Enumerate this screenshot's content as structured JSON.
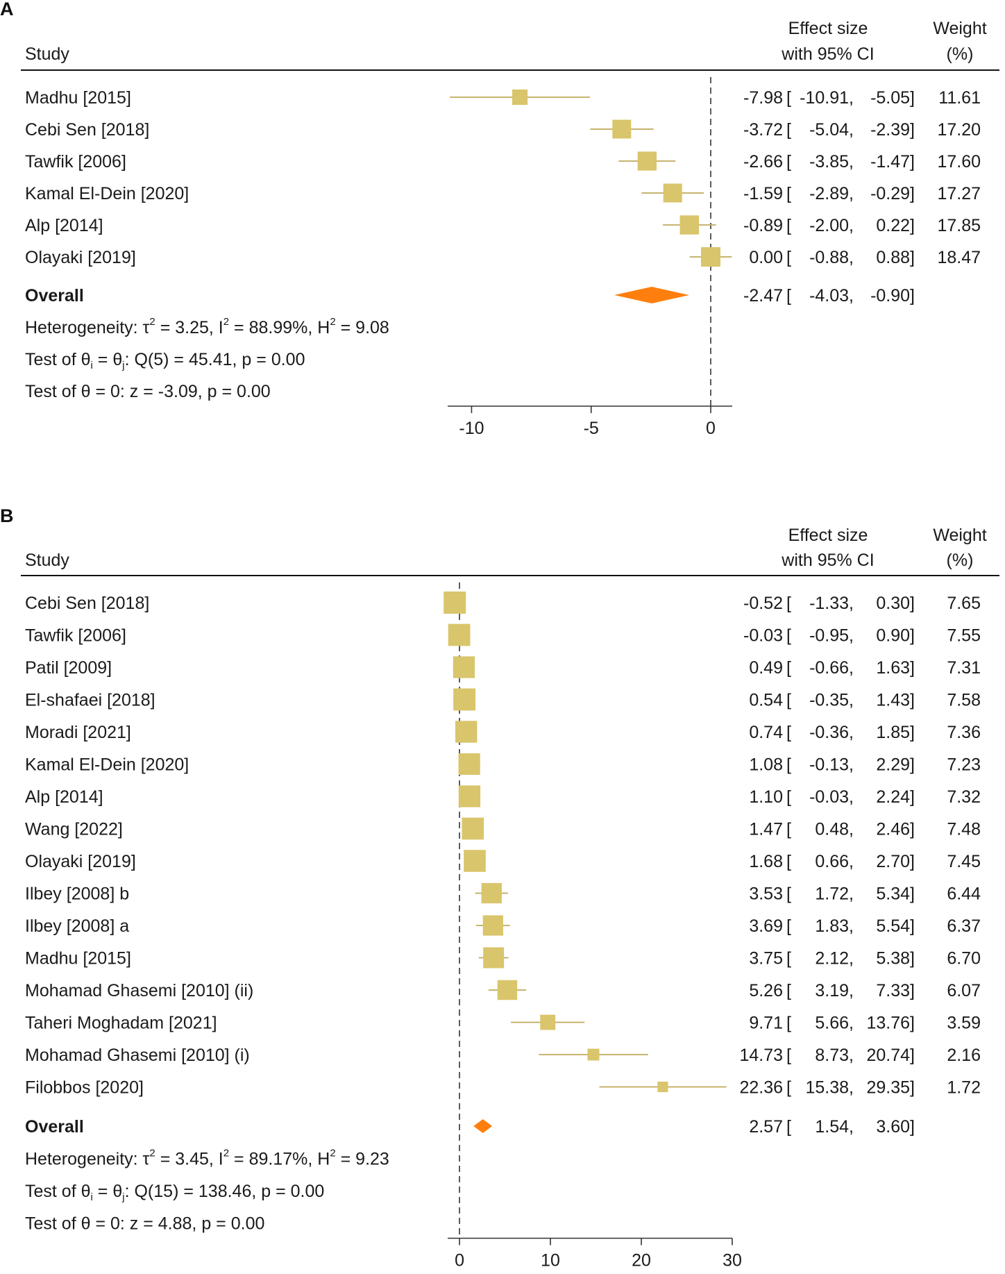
{
  "chart_data": [
    {
      "type": "forest",
      "panel": "A",
      "header": {
        "study": "Study",
        "effect_line1": "Effect size",
        "effect_line2": "with 95% CI",
        "weight_line1": "Weight",
        "weight_line2": "(%)"
      },
      "studies": [
        {
          "name": "Madhu [2015]",
          "es": -7.98,
          "lo": -10.91,
          "hi": -5.05,
          "weight": 11.61,
          "es_txt": "-7.98",
          "lo_txt": "-10.91,",
          "hi_txt": "-5.05]",
          "w_txt": "11.61"
        },
        {
          "name": "Cebi Sen [2018]",
          "es": -3.72,
          "lo": -5.04,
          "hi": -2.39,
          "weight": 17.2,
          "es_txt": "-3.72",
          "lo_txt": "-5.04,",
          "hi_txt": "-2.39]",
          "w_txt": "17.20"
        },
        {
          "name": "Tawfik [2006]",
          "es": -2.66,
          "lo": -3.85,
          "hi": -1.47,
          "weight": 17.6,
          "es_txt": "-2.66",
          "lo_txt": "-3.85,",
          "hi_txt": "-1.47]",
          "w_txt": "17.60"
        },
        {
          "name": "Kamal El-Dein [2020]",
          "es": -1.59,
          "lo": -2.89,
          "hi": -0.29,
          "weight": 17.27,
          "es_txt": "-1.59",
          "lo_txt": "-2.89,",
          "hi_txt": "-0.29]",
          "w_txt": "17.27"
        },
        {
          "name": "Alp [2014]",
          "es": -0.89,
          "lo": -2.0,
          "hi": 0.22,
          "weight": 17.85,
          "es_txt": "-0.89",
          "lo_txt": "-2.00,",
          "hi_txt": "0.22]",
          "w_txt": "17.85"
        },
        {
          "name": "Olayaki [2019]",
          "es": 0.0,
          "lo": -0.88,
          "hi": 0.88,
          "weight": 18.47,
          "es_txt": "0.00",
          "lo_txt": "-0.88,",
          "hi_txt": "0.88]",
          "w_txt": "18.47"
        }
      ],
      "overall": {
        "label": "Overall",
        "es": -2.47,
        "lo": -4.03,
        "hi": -0.9,
        "es_txt": "-2.47",
        "lo_txt": "-4.03,",
        "hi_txt": "-0.90]"
      },
      "heterogeneity": {
        "prefix": "Heterogeneity: τ",
        "tau2": "= 3.25, I",
        "i2": "= 88.99%, H",
        "h2": "= 9.08",
        "sup": "2"
      },
      "test_q": {
        "prefix": "Test of θ",
        "sub_i": "i",
        "mid": " = θ",
        "sub_j": "j",
        "rest": ": Q(5) = 45.41, p = 0.00"
      },
      "test_z": "Test of θ = 0: z = -3.09, p = 0.00",
      "xaxis": {
        "min": -11,
        "max": 0.9,
        "ticks": [
          -10,
          -5,
          0
        ],
        "tick_labels": [
          "-10",
          "-5",
          "0"
        ]
      },
      "colors": {
        "box": "#d9c56b",
        "line": "#bfa95a",
        "diamond": "#ff7f0e",
        "refline": "#333333"
      }
    },
    {
      "type": "forest",
      "panel": "B",
      "header": {
        "study": "Study",
        "effect_line1": "Effect size",
        "effect_line2": "with 95% CI",
        "weight_line1": "Weight",
        "weight_line2": "(%)"
      },
      "studies": [
        {
          "name": "Cebi Sen [2018]",
          "es": -0.52,
          "lo": -1.33,
          "hi": 0.3,
          "weight": 7.65,
          "es_txt": "-0.52",
          "lo_txt": "-1.33,",
          "hi_txt": "0.30]",
          "w_txt": "7.65"
        },
        {
          "name": "Tawfik [2006]",
          "es": -0.03,
          "lo": -0.95,
          "hi": 0.9,
          "weight": 7.55,
          "es_txt": "-0.03",
          "lo_txt": "-0.95,",
          "hi_txt": "0.90]",
          "w_txt": "7.55"
        },
        {
          "name": "Patil [2009]",
          "es": 0.49,
          "lo": -0.66,
          "hi": 1.63,
          "weight": 7.31,
          "es_txt": "0.49",
          "lo_txt": "-0.66,",
          "hi_txt": "1.63]",
          "w_txt": "7.31"
        },
        {
          "name": "El-shafaei [2018]",
          "es": 0.54,
          "lo": -0.35,
          "hi": 1.43,
          "weight": 7.58,
          "es_txt": "0.54",
          "lo_txt": "-0.35,",
          "hi_txt": "1.43]",
          "w_txt": "7.58"
        },
        {
          "name": "Moradi [2021]",
          "es": 0.74,
          "lo": -0.36,
          "hi": 1.85,
          "weight": 7.36,
          "es_txt": "0.74",
          "lo_txt": "-0.36,",
          "hi_txt": "1.85]",
          "w_txt": "7.36"
        },
        {
          "name": "Kamal El-Dein [2020]",
          "es": 1.08,
          "lo": -0.13,
          "hi": 2.29,
          "weight": 7.23,
          "es_txt": "1.08",
          "lo_txt": "-0.13,",
          "hi_txt": "2.29]",
          "w_txt": "7.23"
        },
        {
          "name": "Alp [2014]",
          "es": 1.1,
          "lo": -0.03,
          "hi": 2.24,
          "weight": 7.32,
          "es_txt": "1.10",
          "lo_txt": "-0.03,",
          "hi_txt": "2.24]",
          "w_txt": "7.32"
        },
        {
          "name": "Wang [2022]",
          "es": 1.47,
          "lo": 0.48,
          "hi": 2.46,
          "weight": 7.48,
          "es_txt": "1.47",
          "lo_txt": "0.48,",
          "hi_txt": "2.46]",
          "w_txt": "7.48"
        },
        {
          "name": "Olayaki [2019]",
          "es": 1.68,
          "lo": 0.66,
          "hi": 2.7,
          "weight": 7.45,
          "es_txt": "1.68",
          "lo_txt": "0.66,",
          "hi_txt": "2.70]",
          "w_txt": "7.45"
        },
        {
          "name": "Ilbey [2008] b",
          "es": 3.53,
          "lo": 1.72,
          "hi": 5.34,
          "weight": 6.44,
          "es_txt": "3.53",
          "lo_txt": "1.72,",
          "hi_txt": "5.34]",
          "w_txt": "6.44"
        },
        {
          "name": "Ilbey [2008] a",
          "es": 3.69,
          "lo": 1.83,
          "hi": 5.54,
          "weight": 6.37,
          "es_txt": "3.69",
          "lo_txt": "1.83,",
          "hi_txt": "5.54]",
          "w_txt": "6.37"
        },
        {
          "name": "Madhu [2015]",
          "es": 3.75,
          "lo": 2.12,
          "hi": 5.38,
          "weight": 6.7,
          "es_txt": "3.75",
          "lo_txt": "2.12,",
          "hi_txt": "5.38]",
          "w_txt": "6.70"
        },
        {
          "name": "Mohamad Ghasemi [2010] (ii)",
          "es": 5.26,
          "lo": 3.19,
          "hi": 7.33,
          "weight": 6.07,
          "es_txt": "5.26",
          "lo_txt": "3.19,",
          "hi_txt": "7.33]",
          "w_txt": "6.07"
        },
        {
          "name": "Taheri Moghadam [2021]",
          "es": 9.71,
          "lo": 5.66,
          "hi": 13.76,
          "weight": 3.59,
          "es_txt": "9.71",
          "lo_txt": "5.66,",
          "hi_txt": "13.76]",
          "w_txt": "3.59"
        },
        {
          "name": "Mohamad Ghasemi [2010] (i)",
          "es": 14.73,
          "lo": 8.73,
          "hi": 20.74,
          "weight": 2.16,
          "es_txt": "14.73",
          "lo_txt": "8.73,",
          "hi_txt": "20.74]",
          "w_txt": "2.16"
        },
        {
          "name": "Filobbos [2020]",
          "es": 22.36,
          "lo": 15.38,
          "hi": 29.35,
          "weight": 1.72,
          "es_txt": "22.36",
          "lo_txt": "15.38,",
          "hi_txt": "29.35]",
          "w_txt": "1.72"
        }
      ],
      "overall": {
        "label": "Overall",
        "es": 2.57,
        "lo": 1.54,
        "hi": 3.6,
        "es_txt": "2.57",
        "lo_txt": "1.54,",
        "hi_txt": "3.60]"
      },
      "heterogeneity": {
        "prefix": "Heterogeneity: τ",
        "tau2": "= 3.45, I",
        "i2": "= 89.17%, H",
        "h2": "= 9.23",
        "sup": "2"
      },
      "test_q": {
        "prefix": "Test of θ",
        "sub_i": "i",
        "mid": " = θ",
        "sub_j": "j",
        "rest": ": Q(15) = 138.46, p = 0.00"
      },
      "test_z": "Test of θ = 0: z = 4.88, p = 0.00",
      "xaxis": {
        "min": -1.3,
        "max": 30,
        "ticks": [
          0,
          10,
          20,
          30
        ],
        "tick_labels": [
          "0",
          "10",
          "20",
          "30"
        ]
      },
      "colors": {
        "box": "#d9c56b",
        "line": "#bfa95a",
        "diamond": "#ff7f0e",
        "refline": "#333333"
      }
    }
  ]
}
